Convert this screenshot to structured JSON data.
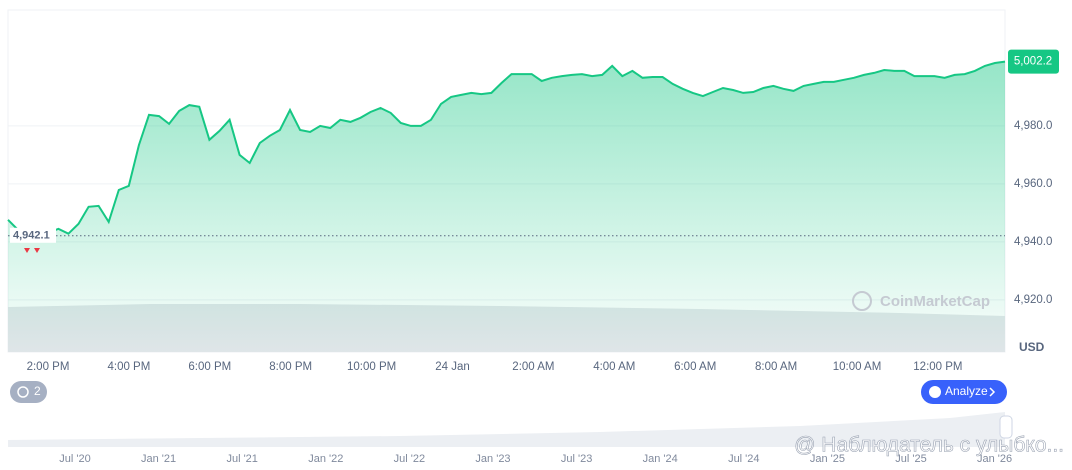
{
  "chart_data": {
    "type": "area",
    "values": [
      4947.6,
      4944.1,
      4941.7,
      4942.1,
      4943.1,
      4944.5,
      4942.8,
      4946.2,
      4952.1,
      4952.4,
      4946.9,
      4957.9,
      4959.3,
      4973.4,
      4983.8,
      4983.4,
      4980.7,
      4985.2,
      4987.2,
      4986.6,
      4975.2,
      4978.3,
      4982.1,
      4970.0,
      4967.2,
      4974.1,
      4976.6,
      4978.6,
      4985.5,
      4978.6,
      4977.9,
      4980.0,
      4979.3,
      4982.1,
      4981.4,
      4982.8,
      4984.8,
      4986.2,
      4984.5,
      4981.0,
      4980.0,
      4980.0,
      4982.1,
      4987.6,
      4990.0,
      4990.7,
      4991.4,
      4991.0,
      4991.4,
      4994.8,
      4997.9,
      4997.9,
      4997.9,
      4995.5,
      4996.6,
      4997.2,
      4997.6,
      4997.9,
      4997.2,
      4997.6,
      5000.7,
      4997.2,
      4999.0,
      4996.6,
      4996.9,
      4996.9,
      4994.5,
      4992.8,
      4991.4,
      4990.3,
      4991.7,
      4993.1,
      4992.4,
      4991.4,
      4991.7,
      4993.1,
      4993.8,
      4992.8,
      4992.1,
      4993.8,
      4994.5,
      4995.2,
      4995.2,
      4995.9,
      4996.6,
      4997.6,
      4998.3,
      4999.3,
      4999.0,
      4999.0,
      4997.2,
      4997.2,
      4997.2,
      4996.6,
      4997.6,
      4997.9,
      4999.0,
      5000.7,
      5001.7,
      5002.2
    ],
    "color": "#16c784",
    "xtick_labels": [
      "2:00 PM",
      "4:00 PM",
      "6:00 PM",
      "8:00 PM",
      "10:00 PM",
      "24 Jan",
      "2:00 AM",
      "4:00 AM",
      "6:00 AM",
      "8:00 AM",
      "10:00 AM",
      "12:00 PM"
    ],
    "ylim": [
      4902,
      5020
    ],
    "yticks": [
      {
        "value": 4920,
        "label": "4,920.0"
      },
      {
        "value": 4940,
        "label": "4,940.0"
      },
      {
        "value": 4960,
        "label": "4,960.0"
      },
      {
        "value": 4980,
        "label": "4,980.0"
      }
    ],
    "grid": true,
    "y_unit_label": "USD",
    "open_line": {
      "value": 4942.1,
      "label": "4,942.1"
    },
    "last_price_label": "5,002.2"
  },
  "ui": {
    "badge_count": "2",
    "analyze_button": "Analyze",
    "watermark": "CoinMarketCap",
    "navigator_labels": [
      "Jul '20",
      "Jan '21",
      "Jul '21",
      "Jan '22",
      "Jul '22",
      "Jan '23",
      "Jul '23",
      "Jan '24",
      "Jul '24",
      "Jan '25",
      "Jul '25",
      "Jan '26"
    ],
    "overlay_text": "@ Наблюдатель с улыбко..."
  }
}
